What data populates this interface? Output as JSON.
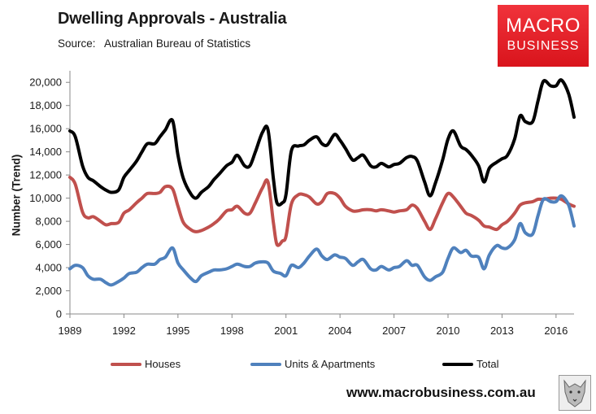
{
  "title": "Dwelling Approvals - Australia",
  "subtitle": "Source:   Australian Bureau of Statistics",
  "logo": {
    "line1": "MACRO",
    "line2": "BUSINESS",
    "color": "#e31e24"
  },
  "website": "www.macrobusiness.com.au",
  "wolf_icon": "wolf-logo-icon",
  "chart_data": {
    "type": "line",
    "title": "Dwelling Approvals - Australia",
    "xlabel": "",
    "ylabel": "Number (Trend)",
    "xlim": [
      1989,
      2017
    ],
    "ylim": [
      0,
      21000
    ],
    "x_ticks": [
      1989,
      1992,
      1995,
      1998,
      2001,
      2004,
      2007,
      2010,
      2013,
      2016
    ],
    "x_tick_labels": [
      "1989",
      "1992",
      "1995",
      "1998",
      "2001",
      "2004",
      "2007",
      "2010",
      "2013",
      "2016"
    ],
    "y_ticks": [
      0,
      2000,
      4000,
      6000,
      8000,
      10000,
      12000,
      14000,
      16000,
      18000,
      20000
    ],
    "y_tick_labels": [
      "0",
      "2,000",
      "4,000",
      "6,000",
      "8,000",
      "10,000",
      "12,000",
      "14,000",
      "16,000",
      "18,000",
      "20,000"
    ],
    "grid": false,
    "legend_position": "bottom",
    "series": [
      {
        "name": "Houses",
        "color": "#c0504d",
        "points": [
          [
            1989.0,
            11800
          ],
          [
            1989.3,
            11200
          ],
          [
            1989.7,
            8800
          ],
          [
            1990.0,
            8300
          ],
          [
            1990.3,
            8400
          ],
          [
            1990.7,
            8000
          ],
          [
            1991.0,
            7700
          ],
          [
            1991.3,
            7800
          ],
          [
            1991.7,
            7900
          ],
          [
            1992.0,
            8700
          ],
          [
            1992.3,
            9000
          ],
          [
            1992.7,
            9600
          ],
          [
            1993.0,
            10000
          ],
          [
            1993.3,
            10400
          ],
          [
            1993.7,
            10400
          ],
          [
            1994.0,
            10500
          ],
          [
            1994.3,
            11000
          ],
          [
            1994.7,
            10800
          ],
          [
            1995.0,
            9300
          ],
          [
            1995.3,
            7900
          ],
          [
            1995.7,
            7300
          ],
          [
            1996.0,
            7100
          ],
          [
            1996.3,
            7200
          ],
          [
            1996.7,
            7500
          ],
          [
            1997.0,
            7800
          ],
          [
            1997.3,
            8200
          ],
          [
            1997.7,
            8900
          ],
          [
            1998.0,
            9000
          ],
          [
            1998.3,
            9300
          ],
          [
            1998.7,
            8700
          ],
          [
            1999.0,
            8700
          ],
          [
            1999.3,
            9600
          ],
          [
            1999.7,
            10900
          ],
          [
            2000.0,
            11400
          ],
          [
            2000.3,
            7900
          ],
          [
            2000.5,
            6000
          ],
          [
            2000.8,
            6300
          ],
          [
            2001.0,
            6700
          ],
          [
            2001.3,
            9500
          ],
          [
            2001.7,
            10300
          ],
          [
            2002.0,
            10300
          ],
          [
            2002.3,
            10100
          ],
          [
            2002.7,
            9500
          ],
          [
            2003.0,
            9700
          ],
          [
            2003.3,
            10400
          ],
          [
            2003.7,
            10400
          ],
          [
            2004.0,
            10000
          ],
          [
            2004.3,
            9300
          ],
          [
            2004.7,
            8900
          ],
          [
            2005.0,
            8900
          ],
          [
            2005.3,
            9000
          ],
          [
            2005.7,
            9000
          ],
          [
            2006.0,
            8900
          ],
          [
            2006.3,
            9000
          ],
          [
            2006.7,
            8900
          ],
          [
            2007.0,
            8800
          ],
          [
            2007.3,
            8900
          ],
          [
            2007.7,
            9000
          ],
          [
            2008.0,
            9400
          ],
          [
            2008.3,
            9100
          ],
          [
            2008.7,
            8000
          ],
          [
            2009.0,
            7300
          ],
          [
            2009.3,
            8200
          ],
          [
            2009.7,
            9600
          ],
          [
            2010.0,
            10400
          ],
          [
            2010.3,
            10100
          ],
          [
            2010.7,
            9300
          ],
          [
            2011.0,
            8700
          ],
          [
            2011.3,
            8500
          ],
          [
            2011.7,
            8100
          ],
          [
            2012.0,
            7600
          ],
          [
            2012.3,
            7500
          ],
          [
            2012.7,
            7300
          ],
          [
            2013.0,
            7700
          ],
          [
            2013.3,
            8000
          ],
          [
            2013.7,
            8700
          ],
          [
            2014.0,
            9400
          ],
          [
            2014.3,
            9600
          ],
          [
            2014.7,
            9700
          ],
          [
            2015.0,
            9900
          ],
          [
            2015.3,
            9900
          ],
          [
            2015.7,
            10000
          ],
          [
            2016.0,
            10000
          ],
          [
            2016.3,
            9900
          ],
          [
            2016.7,
            9500
          ],
          [
            2017.0,
            9300
          ]
        ]
      },
      {
        "name": "Units & Apartments",
        "color": "#4f81bd",
        "points": [
          [
            1989.0,
            3900
          ],
          [
            1989.3,
            4200
          ],
          [
            1989.7,
            4000
          ],
          [
            1990.0,
            3300
          ],
          [
            1990.3,
            3000
          ],
          [
            1990.7,
            3000
          ],
          [
            1991.0,
            2700
          ],
          [
            1991.3,
            2500
          ],
          [
            1991.7,
            2800
          ],
          [
            1992.0,
            3100
          ],
          [
            1992.3,
            3500
          ],
          [
            1992.7,
            3600
          ],
          [
            1993.0,
            4000
          ],
          [
            1993.3,
            4300
          ],
          [
            1993.7,
            4300
          ],
          [
            1994.0,
            4700
          ],
          [
            1994.3,
            4900
          ],
          [
            1994.7,
            5700
          ],
          [
            1995.0,
            4400
          ],
          [
            1995.3,
            3800
          ],
          [
            1995.7,
            3100
          ],
          [
            1996.0,
            2800
          ],
          [
            1996.3,
            3300
          ],
          [
            1996.7,
            3600
          ],
          [
            1997.0,
            3800
          ],
          [
            1997.3,
            3800
          ],
          [
            1997.7,
            3900
          ],
          [
            1998.0,
            4100
          ],
          [
            1998.3,
            4300
          ],
          [
            1998.7,
            4100
          ],
          [
            1999.0,
            4100
          ],
          [
            1999.3,
            4400
          ],
          [
            1999.7,
            4500
          ],
          [
            2000.0,
            4400
          ],
          [
            2000.3,
            3700
          ],
          [
            2000.7,
            3500
          ],
          [
            2001.0,
            3300
          ],
          [
            2001.3,
            4200
          ],
          [
            2001.7,
            4000
          ],
          [
            2002.0,
            4400
          ],
          [
            2002.3,
            5000
          ],
          [
            2002.7,
            5600
          ],
          [
            2003.0,
            5000
          ],
          [
            2003.3,
            4700
          ],
          [
            2003.7,
            5100
          ],
          [
            2004.0,
            4900
          ],
          [
            2004.3,
            4800
          ],
          [
            2004.7,
            4200
          ],
          [
            2005.0,
            4500
          ],
          [
            2005.3,
            4700
          ],
          [
            2005.7,
            3900
          ],
          [
            2006.0,
            3800
          ],
          [
            2006.3,
            4100
          ],
          [
            2006.7,
            3800
          ],
          [
            2007.0,
            4000
          ],
          [
            2007.3,
            4100
          ],
          [
            2007.7,
            4600
          ],
          [
            2008.0,
            4200
          ],
          [
            2008.3,
            4200
          ],
          [
            2008.7,
            3200
          ],
          [
            2009.0,
            2900
          ],
          [
            2009.3,
            3200
          ],
          [
            2009.7,
            3600
          ],
          [
            2010.0,
            4800
          ],
          [
            2010.3,
            5700
          ],
          [
            2010.7,
            5300
          ],
          [
            2011.0,
            5500
          ],
          [
            2011.3,
            5000
          ],
          [
            2011.7,
            4900
          ],
          [
            2012.0,
            3900
          ],
          [
            2012.3,
            5100
          ],
          [
            2012.7,
            5900
          ],
          [
            2013.0,
            5700
          ],
          [
            2013.3,
            5700
          ],
          [
            2013.7,
            6400
          ],
          [
            2014.0,
            7800
          ],
          [
            2014.3,
            7000
          ],
          [
            2014.7,
            6900
          ],
          [
            2015.0,
            8500
          ],
          [
            2015.3,
            9900
          ],
          [
            2015.7,
            9700
          ],
          [
            2016.0,
            9700
          ],
          [
            2016.3,
            10200
          ],
          [
            2016.7,
            9400
          ],
          [
            2017.0,
            7600
          ]
        ]
      },
      {
        "name": "Total",
        "color": "#000000",
        "points": [
          [
            1989.0,
            15800
          ],
          [
            1989.3,
            15300
          ],
          [
            1989.7,
            12800
          ],
          [
            1990.0,
            11800
          ],
          [
            1990.3,
            11500
          ],
          [
            1990.7,
            11000
          ],
          [
            1991.0,
            10700
          ],
          [
            1991.3,
            10500
          ],
          [
            1991.7,
            10700
          ],
          [
            1992.0,
            11800
          ],
          [
            1992.3,
            12400
          ],
          [
            1992.7,
            13200
          ],
          [
            1993.0,
            14000
          ],
          [
            1993.3,
            14700
          ],
          [
            1993.7,
            14700
          ],
          [
            1994.0,
            15300
          ],
          [
            1994.3,
            15900
          ],
          [
            1994.7,
            16700
          ],
          [
            1995.0,
            13700
          ],
          [
            1995.3,
            11700
          ],
          [
            1995.7,
            10400
          ],
          [
            1996.0,
            10000
          ],
          [
            1996.3,
            10500
          ],
          [
            1996.7,
            11000
          ],
          [
            1997.0,
            11600
          ],
          [
            1997.3,
            12100
          ],
          [
            1997.7,
            12800
          ],
          [
            1998.0,
            13100
          ],
          [
            1998.3,
            13700
          ],
          [
            1998.7,
            12800
          ],
          [
            1999.0,
            12800
          ],
          [
            1999.3,
            14000
          ],
          [
            1999.7,
            15700
          ],
          [
            2000.0,
            15900
          ],
          [
            2000.3,
            11700
          ],
          [
            2000.5,
            9600
          ],
          [
            2000.8,
            9600
          ],
          [
            2001.0,
            10300
          ],
          [
            2001.3,
            14100
          ],
          [
            2001.7,
            14500
          ],
          [
            2002.0,
            14600
          ],
          [
            2002.3,
            15000
          ],
          [
            2002.7,
            15300
          ],
          [
            2003.0,
            14700
          ],
          [
            2003.3,
            14600
          ],
          [
            2003.7,
            15500
          ],
          [
            2004.0,
            15000
          ],
          [
            2004.3,
            14300
          ],
          [
            2004.7,
            13300
          ],
          [
            2005.0,
            13500
          ],
          [
            2005.3,
            13700
          ],
          [
            2005.7,
            12800
          ],
          [
            2006.0,
            12700
          ],
          [
            2006.3,
            13000
          ],
          [
            2006.7,
            12700
          ],
          [
            2007.0,
            12900
          ],
          [
            2007.3,
            13000
          ],
          [
            2007.7,
            13500
          ],
          [
            2008.0,
            13600
          ],
          [
            2008.3,
            13200
          ],
          [
            2008.7,
            11400
          ],
          [
            2009.0,
            10200
          ],
          [
            2009.3,
            11300
          ],
          [
            2009.7,
            13300
          ],
          [
            2010.0,
            15100
          ],
          [
            2010.3,
            15800
          ],
          [
            2010.7,
            14500
          ],
          [
            2011.0,
            14200
          ],
          [
            2011.3,
            13700
          ],
          [
            2011.7,
            12800
          ],
          [
            2012.0,
            11400
          ],
          [
            2012.3,
            12600
          ],
          [
            2012.7,
            13100
          ],
          [
            2013.0,
            13400
          ],
          [
            2013.3,
            13700
          ],
          [
            2013.7,
            15100
          ],
          [
            2014.0,
            17100
          ],
          [
            2014.3,
            16600
          ],
          [
            2014.7,
            16600
          ],
          [
            2015.0,
            18400
          ],
          [
            2015.3,
            20100
          ],
          [
            2015.7,
            19700
          ],
          [
            2016.0,
            19700
          ],
          [
            2016.3,
            20200
          ],
          [
            2016.7,
            19000
          ],
          [
            2017.0,
            17000
          ]
        ]
      }
    ]
  }
}
